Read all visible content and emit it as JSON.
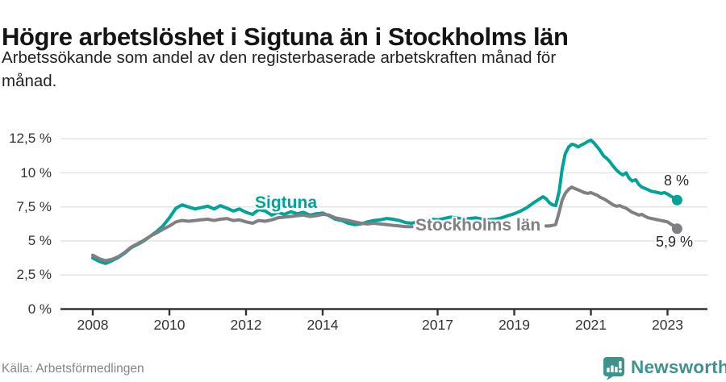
{
  "header": {
    "title": "Högre arbetslöshet i Sigtuna än i Stockholms län",
    "subtitle_line1": "Arbetssökande som andel av den registerbaserade arbetskraften månad för",
    "subtitle_line2": "månad."
  },
  "footer": {
    "source": "Källa: Arbetsförmedlingen",
    "brand_name": "Newsworthy"
  },
  "branding": {
    "logo_icon": "bar-chart-speech-bubble-icon",
    "color": "#3e938d"
  },
  "colors": {
    "sigtuna": "#00a496",
    "stockholm": "#7f7f84",
    "grid": "#e4e4e4",
    "axis": "#333333",
    "text": "#222222",
    "muted": "#82868b"
  },
  "chart_data": {
    "type": "line",
    "title": "Högre arbetslöshet i Sigtuna än i Stockholms län",
    "xlabel": "",
    "ylabel": "",
    "x_unit": "decimal year (monthly observations)",
    "y_unit": "percent of registered labour force",
    "xlim": [
      2007.2,
      2024.0
    ],
    "ylim": [
      0,
      13
    ],
    "grid": "horizontal",
    "legend_position": "inline-labels",
    "yticks": [
      {
        "label": "0 %",
        "value": 0
      },
      {
        "label": "2,5 %",
        "value": 2.5
      },
      {
        "label": "5 %",
        "value": 5
      },
      {
        "label": "7,5 %",
        "value": 7.5
      },
      {
        "label": "10 %",
        "value": 10
      },
      {
        "label": "12,5 %",
        "value": 12.5
      }
    ],
    "xticks": [
      {
        "label": "2008",
        "value": 2008
      },
      {
        "label": "2010",
        "value": 2010
      },
      {
        "label": "2012",
        "value": 2012
      },
      {
        "label": "2014",
        "value": 2014
      },
      {
        "label": "2017",
        "value": 2017
      },
      {
        "label": "2019",
        "value": 2019
      },
      {
        "label": "2021",
        "value": 2021
      },
      {
        "label": "2023",
        "value": 2023
      }
    ],
    "series": [
      {
        "name": "Sigtuna",
        "color": "#00a496",
        "end_label": "8 %",
        "end_value": 8.0,
        "points": [
          [
            2008.0,
            3.75
          ],
          [
            2008.17,
            3.5
          ],
          [
            2008.33,
            3.35
          ],
          [
            2008.5,
            3.55
          ],
          [
            2008.67,
            3.8
          ],
          [
            2008.83,
            4.1
          ],
          [
            2009.0,
            4.5
          ],
          [
            2009.17,
            4.75
          ],
          [
            2009.33,
            5.0
          ],
          [
            2009.5,
            5.35
          ],
          [
            2009.67,
            5.7
          ],
          [
            2009.83,
            6.1
          ],
          [
            2010.0,
            6.7
          ],
          [
            2010.17,
            7.4
          ],
          [
            2010.33,
            7.65
          ],
          [
            2010.5,
            7.5
          ],
          [
            2010.67,
            7.35
          ],
          [
            2010.83,
            7.45
          ],
          [
            2011.0,
            7.55
          ],
          [
            2011.17,
            7.35
          ],
          [
            2011.33,
            7.6
          ],
          [
            2011.5,
            7.4
          ],
          [
            2011.67,
            7.2
          ],
          [
            2011.83,
            7.35
          ],
          [
            2012.0,
            7.1
          ],
          [
            2012.17,
            6.95
          ],
          [
            2012.33,
            7.3
          ],
          [
            2012.5,
            7.2
          ],
          [
            2012.67,
            6.9
          ],
          [
            2012.83,
            7.1
          ],
          [
            2013.0,
            6.95
          ],
          [
            2013.17,
            7.15
          ],
          [
            2013.33,
            7.0
          ],
          [
            2013.5,
            7.1
          ],
          [
            2013.67,
            6.9
          ],
          [
            2013.83,
            7.0
          ],
          [
            2014.0,
            7.05
          ],
          [
            2014.17,
            6.85
          ],
          [
            2014.33,
            6.6
          ],
          [
            2014.5,
            6.5
          ],
          [
            2014.67,
            6.3
          ],
          [
            2014.83,
            6.2
          ],
          [
            2015.0,
            6.25
          ],
          [
            2015.17,
            6.4
          ],
          [
            2015.33,
            6.5
          ],
          [
            2015.5,
            6.55
          ],
          [
            2015.67,
            6.65
          ],
          [
            2015.83,
            6.6
          ],
          [
            2016.0,
            6.5
          ],
          [
            2016.17,
            6.35
          ],
          [
            2016.33,
            6.3
          ],
          [
            2016.5,
            6.45
          ],
          [
            2016.67,
            6.55
          ],
          [
            2016.83,
            6.6
          ],
          [
            2017.0,
            6.55
          ],
          [
            2017.17,
            6.65
          ],
          [
            2017.33,
            6.75
          ],
          [
            2017.5,
            6.7
          ],
          [
            2017.67,
            6.6
          ],
          [
            2017.83,
            6.65
          ],
          [
            2018.0,
            6.7
          ],
          [
            2018.17,
            6.6
          ],
          [
            2018.33,
            6.55
          ],
          [
            2018.5,
            6.6
          ],
          [
            2018.67,
            6.7
          ],
          [
            2018.83,
            6.85
          ],
          [
            2019.0,
            7.0
          ],
          [
            2019.17,
            7.2
          ],
          [
            2019.33,
            7.45
          ],
          [
            2019.5,
            7.8
          ],
          [
            2019.67,
            8.1
          ],
          [
            2019.75,
            8.25
          ],
          [
            2019.83,
            8.1
          ],
          [
            2019.92,
            7.8
          ],
          [
            2020.0,
            7.65
          ],
          [
            2020.08,
            7.6
          ],
          [
            2020.17,
            8.6
          ],
          [
            2020.25,
            10.3
          ],
          [
            2020.33,
            11.4
          ],
          [
            2020.42,
            11.9
          ],
          [
            2020.5,
            12.1
          ],
          [
            2020.58,
            12.05
          ],
          [
            2020.67,
            11.9
          ],
          [
            2020.75,
            12.05
          ],
          [
            2020.83,
            12.15
          ],
          [
            2020.92,
            12.3
          ],
          [
            2021.0,
            12.4
          ],
          [
            2021.08,
            12.2
          ],
          [
            2021.17,
            11.9
          ],
          [
            2021.25,
            11.6
          ],
          [
            2021.33,
            11.25
          ],
          [
            2021.42,
            11.05
          ],
          [
            2021.5,
            10.8
          ],
          [
            2021.58,
            10.5
          ],
          [
            2021.67,
            10.2
          ],
          [
            2021.75,
            10.0
          ],
          [
            2021.83,
            9.85
          ],
          [
            2021.92,
            10.0
          ],
          [
            2022.0,
            9.6
          ],
          [
            2022.08,
            9.4
          ],
          [
            2022.17,
            9.5
          ],
          [
            2022.25,
            9.15
          ],
          [
            2022.33,
            8.95
          ],
          [
            2022.42,
            8.85
          ],
          [
            2022.5,
            8.75
          ],
          [
            2022.58,
            8.65
          ],
          [
            2022.67,
            8.6
          ],
          [
            2022.75,
            8.55
          ],
          [
            2022.83,
            8.5
          ],
          [
            2022.92,
            8.55
          ],
          [
            2023.0,
            8.45
          ],
          [
            2023.08,
            8.3
          ],
          [
            2023.17,
            8.15
          ],
          [
            2023.25,
            8.0
          ]
        ]
      },
      {
        "name": "Stockholms län",
        "color": "#7f7f84",
        "end_label": "5,9 %",
        "end_value": 5.9,
        "points": [
          [
            2008.0,
            3.95
          ],
          [
            2008.17,
            3.7
          ],
          [
            2008.33,
            3.55
          ],
          [
            2008.5,
            3.65
          ],
          [
            2008.67,
            3.85
          ],
          [
            2008.83,
            4.15
          ],
          [
            2009.0,
            4.55
          ],
          [
            2009.17,
            4.8
          ],
          [
            2009.33,
            5.05
          ],
          [
            2009.5,
            5.35
          ],
          [
            2009.67,
            5.6
          ],
          [
            2009.83,
            5.85
          ],
          [
            2010.0,
            6.1
          ],
          [
            2010.17,
            6.4
          ],
          [
            2010.33,
            6.5
          ],
          [
            2010.5,
            6.45
          ],
          [
            2010.67,
            6.5
          ],
          [
            2010.83,
            6.55
          ],
          [
            2011.0,
            6.6
          ],
          [
            2011.17,
            6.5
          ],
          [
            2011.33,
            6.6
          ],
          [
            2011.5,
            6.65
          ],
          [
            2011.67,
            6.5
          ],
          [
            2011.83,
            6.55
          ],
          [
            2012.0,
            6.4
          ],
          [
            2012.17,
            6.3
          ],
          [
            2012.33,
            6.5
          ],
          [
            2012.5,
            6.45
          ],
          [
            2012.67,
            6.55
          ],
          [
            2012.83,
            6.7
          ],
          [
            2013.0,
            6.75
          ],
          [
            2013.17,
            6.8
          ],
          [
            2013.33,
            6.85
          ],
          [
            2013.5,
            6.9
          ],
          [
            2013.67,
            6.8
          ],
          [
            2013.83,
            6.85
          ],
          [
            2014.0,
            6.95
          ],
          [
            2014.17,
            6.9
          ],
          [
            2014.33,
            6.7
          ],
          [
            2014.5,
            6.6
          ],
          [
            2014.67,
            6.5
          ],
          [
            2014.83,
            6.4
          ],
          [
            2015.0,
            6.3
          ],
          [
            2015.17,
            6.25
          ],
          [
            2015.33,
            6.3
          ],
          [
            2015.5,
            6.25
          ],
          [
            2015.67,
            6.2
          ],
          [
            2015.83,
            6.15
          ],
          [
            2016.0,
            6.1
          ],
          [
            2016.17,
            6.05
          ],
          [
            2016.33,
            6.05
          ],
          [
            2018.0,
            null
          ],
          [
            2019.83,
            6.1
          ],
          [
            2019.92,
            6.1
          ],
          [
            2020.0,
            6.15
          ],
          [
            2020.08,
            6.2
          ],
          [
            2020.17,
            7.1
          ],
          [
            2020.25,
            8.0
          ],
          [
            2020.33,
            8.5
          ],
          [
            2020.42,
            8.8
          ],
          [
            2020.5,
            8.95
          ],
          [
            2020.58,
            8.85
          ],
          [
            2020.67,
            8.75
          ],
          [
            2020.75,
            8.65
          ],
          [
            2020.83,
            8.55
          ],
          [
            2020.92,
            8.5
          ],
          [
            2021.0,
            8.55
          ],
          [
            2021.08,
            8.45
          ],
          [
            2021.17,
            8.35
          ],
          [
            2021.25,
            8.2
          ],
          [
            2021.33,
            8.1
          ],
          [
            2021.42,
            7.95
          ],
          [
            2021.5,
            7.8
          ],
          [
            2021.58,
            7.65
          ],
          [
            2021.67,
            7.55
          ],
          [
            2021.75,
            7.6
          ],
          [
            2021.83,
            7.5
          ],
          [
            2021.92,
            7.4
          ],
          [
            2022.0,
            7.25
          ],
          [
            2022.08,
            7.1
          ],
          [
            2022.17,
            7.0
          ],
          [
            2022.25,
            6.9
          ],
          [
            2022.33,
            6.95
          ],
          [
            2022.42,
            6.8
          ],
          [
            2022.5,
            6.7
          ],
          [
            2022.58,
            6.65
          ],
          [
            2022.67,
            6.6
          ],
          [
            2022.75,
            6.55
          ],
          [
            2022.83,
            6.5
          ],
          [
            2022.92,
            6.45
          ],
          [
            2023.0,
            6.4
          ],
          [
            2023.08,
            6.25
          ],
          [
            2023.17,
            6.1
          ],
          [
            2023.25,
            5.9
          ]
        ]
      }
    ]
  }
}
